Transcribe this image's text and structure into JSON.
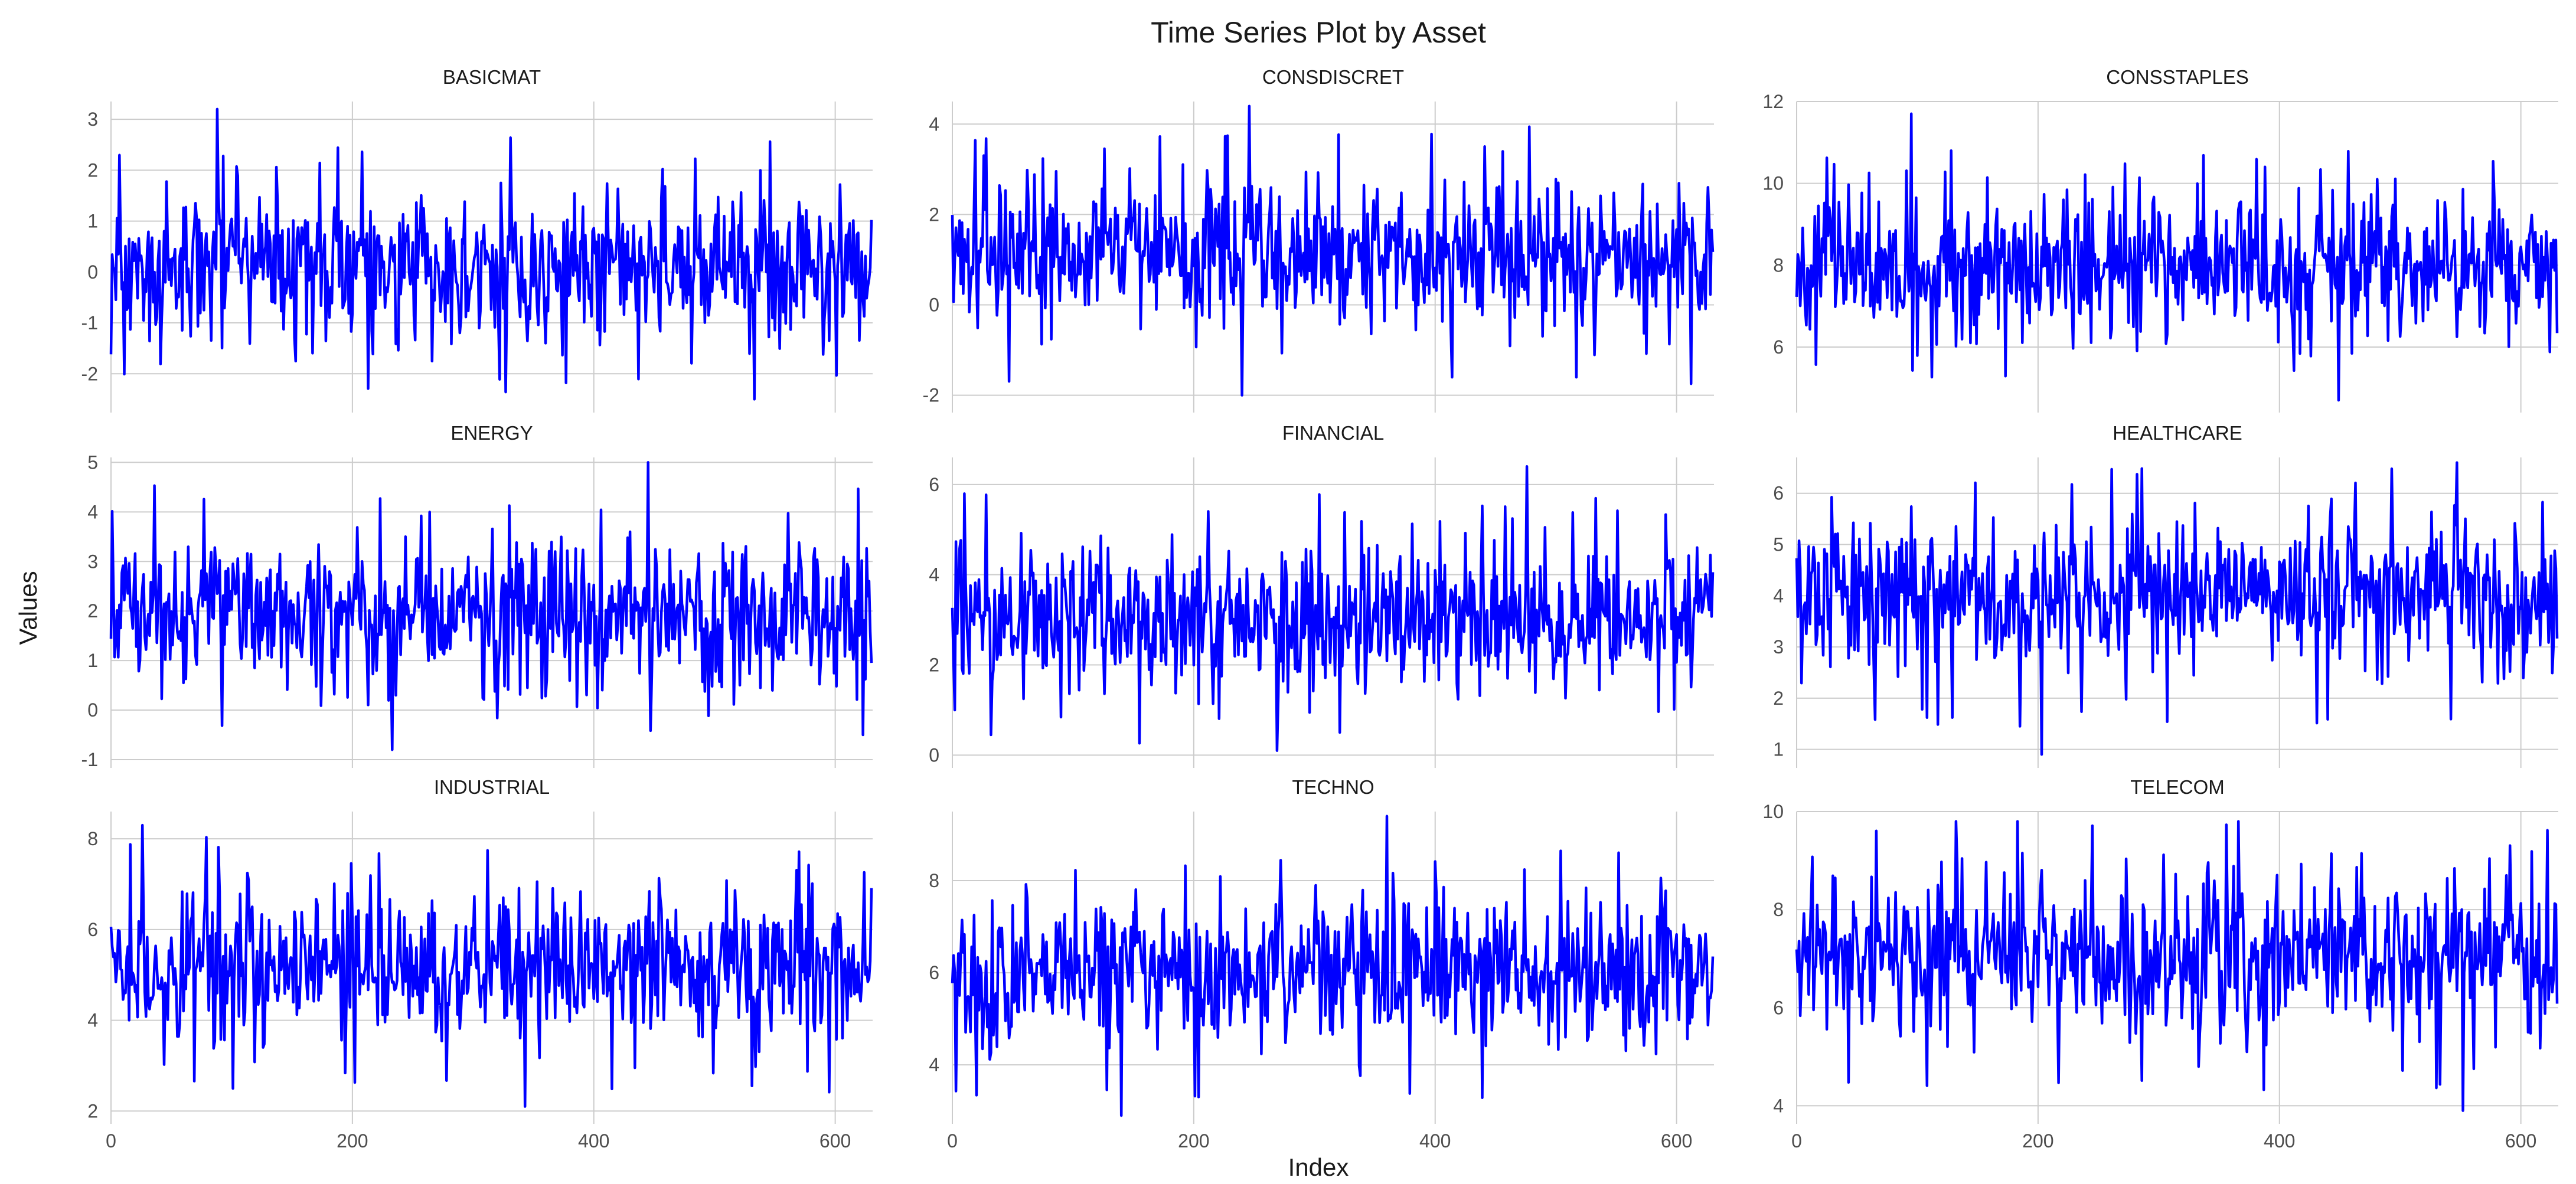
{
  "chart_data": {
    "type": "line",
    "title": "Time Series Plot by Asset",
    "xlabel": "Index",
    "ylabel": "Values",
    "line_color": "#0000ff",
    "grid": true,
    "grid_color": "#cccccc",
    "layout": "3x3 facets, shared x axis",
    "x_range": [
      0,
      631
    ],
    "x_ticks": [
      0,
      200,
      400,
      600
    ],
    "n_points": 631,
    "facets": [
      {
        "name": "BASICMAT",
        "ylim": [
          -2.6,
          3.35
        ],
        "yticks": [
          -2,
          -1,
          0,
          1,
          2,
          3
        ],
        "center": 0.1,
        "spread": 0.85,
        "min": -2.5,
        "max": 3.2
      },
      {
        "name": "CONSDISCRET",
        "ylim": [
          -2.2,
          4.5
        ],
        "yticks": [
          -2,
          0,
          2,
          4
        ],
        "center": 1.1,
        "spread": 0.95,
        "min": -2.0,
        "max": 4.4
      },
      {
        "name": "CONSSTAPLES",
        "ylim": [
          4.6,
          12.0
        ],
        "yticks": [
          6,
          8,
          10,
          12
        ],
        "center": 8.0,
        "spread": 0.95,
        "min": 4.7,
        "max": 11.7
      },
      {
        "name": "ENERGY",
        "ylim": [
          -1.0,
          5.1
        ],
        "yticks": [
          -1,
          0,
          1,
          2,
          3,
          4,
          5
        ],
        "center": 2.0,
        "spread": 0.85,
        "min": -0.8,
        "max": 5.0
      },
      {
        "name": "FINANCIAL",
        "ylim": [
          -0.1,
          6.6
        ],
        "yticks": [
          0,
          2,
          4,
          6
        ],
        "center": 3.0,
        "spread": 0.95,
        "min": 0.1,
        "max": 6.4
      },
      {
        "name": "HEALTHCARE",
        "ylim": [
          0.8,
          6.7
        ],
        "yticks": [
          1,
          2,
          3,
          4,
          5,
          6
        ],
        "center": 4.0,
        "spread": 0.85,
        "min": 0.9,
        "max": 6.6
      },
      {
        "name": "INDUSTRIAL",
        "ylim": [
          1.9,
          8.6
        ],
        "yticks": [
          2,
          4,
          6,
          8
        ],
        "center": 5.2,
        "spread": 0.95,
        "min": 2.1,
        "max": 8.3
      },
      {
        "name": "TECHNO",
        "ylim": [
          2.9,
          9.5
        ],
        "yticks": [
          4,
          6,
          8
        ],
        "center": 6.0,
        "spread": 0.95,
        "min": 2.9,
        "max": 9.4
      },
      {
        "name": "TELECOM",
        "ylim": [
          3.8,
          10.0
        ],
        "yticks": [
          4,
          6,
          8,
          10
        ],
        "center": 7.1,
        "spread": 0.95,
        "min": 3.9,
        "max": 9.8
      }
    ]
  }
}
